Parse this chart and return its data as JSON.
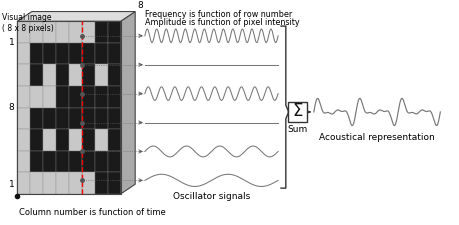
{
  "bg_color": "#ffffff",
  "text_color": "#000000",
  "wave_color": "#777777",
  "label_visual_image": "Visual image\n( 8 x 8 pixels)",
  "label_freq": "Frequency is function of row number",
  "label_amp": "Amplitude is function of pixel intensity",
  "label_osc": "Oscillator signals",
  "label_col": "Column number is function of time",
  "label_sum": "Sum",
  "label_acoust": "Acoustical representation",
  "e_pattern": [
    [
      1,
      1,
      1,
      1,
      1,
      1,
      0,
      0
    ],
    [
      1,
      0,
      0,
      0,
      0,
      0,
      0,
      0
    ],
    [
      1,
      0,
      1,
      0,
      1,
      0,
      1,
      0
    ],
    [
      1,
      1,
      1,
      0,
      0,
      0,
      0,
      0
    ],
    [
      1,
      0,
      0,
      0,
      0,
      0,
      0,
      0
    ],
    [
      1,
      0,
      1,
      0,
      1,
      0,
      1,
      0
    ],
    [
      1,
      0,
      0,
      0,
      0,
      0,
      0,
      0
    ],
    [
      1,
      1,
      1,
      1,
      1,
      1,
      0,
      0
    ]
  ],
  "osc_freqs": [
    14,
    0,
    10,
    0,
    4,
    2
  ],
  "osc_amps": [
    1.0,
    0.0,
    1.0,
    0.0,
    0.8,
    0.9
  ],
  "acou_freqs": [
    6,
    9,
    3,
    12
  ],
  "acou_amps": [
    0.6,
    0.4,
    0.3,
    0.25
  ]
}
